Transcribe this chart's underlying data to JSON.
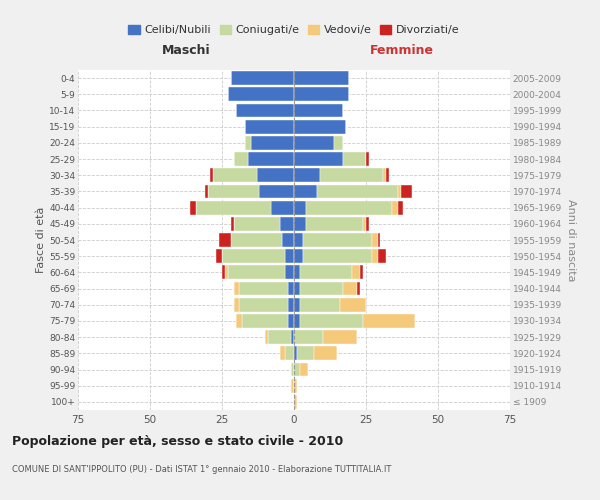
{
  "age_groups": [
    "100+",
    "95-99",
    "90-94",
    "85-89",
    "80-84",
    "75-79",
    "70-74",
    "65-69",
    "60-64",
    "55-59",
    "50-54",
    "45-49",
    "40-44",
    "35-39",
    "30-34",
    "25-29",
    "20-24",
    "15-19",
    "10-14",
    "5-9",
    "0-4"
  ],
  "birth_years": [
    "≤ 1909",
    "1910-1914",
    "1915-1919",
    "1920-1924",
    "1925-1929",
    "1930-1934",
    "1935-1939",
    "1940-1944",
    "1945-1949",
    "1950-1954",
    "1955-1959",
    "1960-1964",
    "1965-1969",
    "1970-1974",
    "1975-1979",
    "1980-1984",
    "1985-1989",
    "1990-1994",
    "1995-1999",
    "2000-2004",
    "2005-2009"
  ],
  "colors": {
    "celibi": "#4472c4",
    "coniugati": "#c5d9a0",
    "vedovi": "#f5c97a",
    "divorziati": "#cc2222"
  },
  "maschi": {
    "celibi": [
      0,
      0,
      0,
      0,
      1,
      2,
      2,
      2,
      3,
      3,
      4,
      5,
      8,
      12,
      13,
      16,
      15,
      17,
      20,
      23,
      22
    ],
    "coniugati": [
      0,
      0,
      1,
      3,
      8,
      16,
      17,
      17,
      20,
      22,
      18,
      16,
      26,
      18,
      15,
      5,
      2,
      0,
      0,
      0,
      0
    ],
    "vedovi": [
      0,
      1,
      0,
      2,
      1,
      2,
      2,
      2,
      1,
      0,
      0,
      0,
      0,
      0,
      0,
      0,
      0,
      0,
      0,
      0,
      0
    ],
    "divorziati": [
      0,
      0,
      0,
      0,
      0,
      0,
      0,
      0,
      1,
      2,
      4,
      1,
      2,
      1,
      1,
      0,
      0,
      0,
      0,
      0,
      0
    ]
  },
  "femmine": {
    "celibi": [
      0,
      0,
      0,
      1,
      0,
      2,
      2,
      2,
      2,
      3,
      3,
      4,
      4,
      8,
      9,
      17,
      14,
      18,
      17,
      19,
      19
    ],
    "coniugati": [
      0,
      0,
      2,
      6,
      10,
      22,
      14,
      15,
      18,
      24,
      24,
      20,
      30,
      28,
      22,
      8,
      3,
      0,
      0,
      0,
      0
    ],
    "vedovi": [
      1,
      1,
      3,
      8,
      12,
      18,
      9,
      5,
      3,
      2,
      2,
      1,
      2,
      1,
      1,
      0,
      0,
      0,
      0,
      0,
      0
    ],
    "divorziati": [
      0,
      0,
      0,
      0,
      0,
      0,
      0,
      1,
      1,
      3,
      1,
      1,
      2,
      4,
      1,
      1,
      0,
      0,
      0,
      0,
      0
    ]
  },
  "xlim": 75,
  "title": "Popolazione per età, sesso e stato civile - 2010",
  "subtitle": "COMUNE DI SANT'IPPOLITO (PU) - Dati ISTAT 1° gennaio 2010 - Elaborazione TUTTITALIA.IT",
  "ylabel_left": "Fasce di età",
  "ylabel_right": "Anni di nascita",
  "xlabel_left": "Maschi",
  "xlabel_right": "Femmine",
  "legend_labels": [
    "Celibi/Nubili",
    "Coniugati/e",
    "Vedovi/e",
    "Divorziati/e"
  ],
  "background_color": "#f0f0f0",
  "plot_bg_color": "#ffffff"
}
